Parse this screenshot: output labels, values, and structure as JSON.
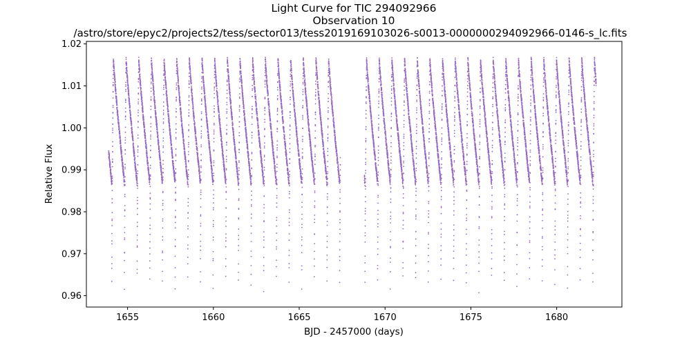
{
  "chart_data": {
    "type": "scatter",
    "title_lines": [
      "Light Curve for TIC 294092966",
      "Observation 10",
      "/astro/store/epyc2/projects2/tess/sector013/tess2019169103026-s0013-0000000294092966-0146-s_lc.fits"
    ],
    "xlabel": "BJD - 2457000 (days)",
    "ylabel": "Relative Flux",
    "xlim": [
      1652.6,
      1683.8
    ],
    "ylim": [
      0.9573,
      1.0206
    ],
    "xticks": [
      1655,
      1660,
      1665,
      1670,
      1675,
      1680
    ],
    "xtick_labels": [
      "1655",
      "1660",
      "1665",
      "1670",
      "1675",
      "1680"
    ],
    "yticks": [
      0.96,
      0.97,
      0.98,
      0.99,
      1.0,
      1.01,
      1.02
    ],
    "ytick_labels": [
      "0.96",
      "0.97",
      "0.98",
      "0.99",
      "1.00",
      "1.01",
      "1.02"
    ],
    "grid": false,
    "marker_color": "#9467bd",
    "segments": [
      {
        "x_start": 1653.9,
        "x_end": 1667.4
      },
      {
        "x_start": 1668.8,
        "x_end": 1682.3
      }
    ],
    "period_days": 0.7375,
    "first_dip_bjd": 1654.08,
    "flux_range": {
      "max": 1.0165,
      "min": 0.9615,
      "baseline_low": 0.987
    }
  }
}
